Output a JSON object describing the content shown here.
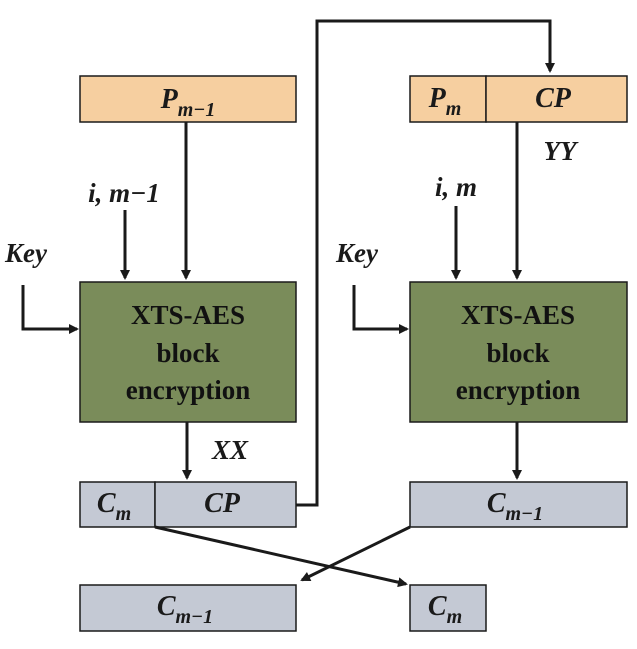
{
  "colors": {
    "plaintext_fill": "#f6cfa0",
    "encryption_fill": "#7a8c5a",
    "ciphertext_fill": "#c4c9d4",
    "stroke": "#1a1a1a"
  },
  "left_stage": {
    "input_block": {
      "base": "P",
      "sub": "m−1"
    },
    "tweak_label": "i, m−1",
    "key_label": "Key",
    "encryption": {
      "line1": "XTS-AES",
      "line2": "block",
      "line3": "encryption"
    },
    "output_label": "XX",
    "output_block": {
      "left": {
        "base": "C",
        "sub": "m"
      },
      "right": "CP"
    }
  },
  "right_stage": {
    "input_block": {
      "left": {
        "base": "P",
        "sub": "m"
      },
      "right": "CP"
    },
    "input_label": "YY",
    "tweak_label": "i, m",
    "key_label": "Key",
    "encryption": {
      "line1": "XTS-AES",
      "line2": "block",
      "line3": "encryption"
    },
    "output_block": {
      "base": "C",
      "sub": "m−1"
    }
  },
  "final_blocks": {
    "left": {
      "base": "C",
      "sub": "m−1"
    },
    "right": {
      "base": "C",
      "sub": "m"
    }
  }
}
